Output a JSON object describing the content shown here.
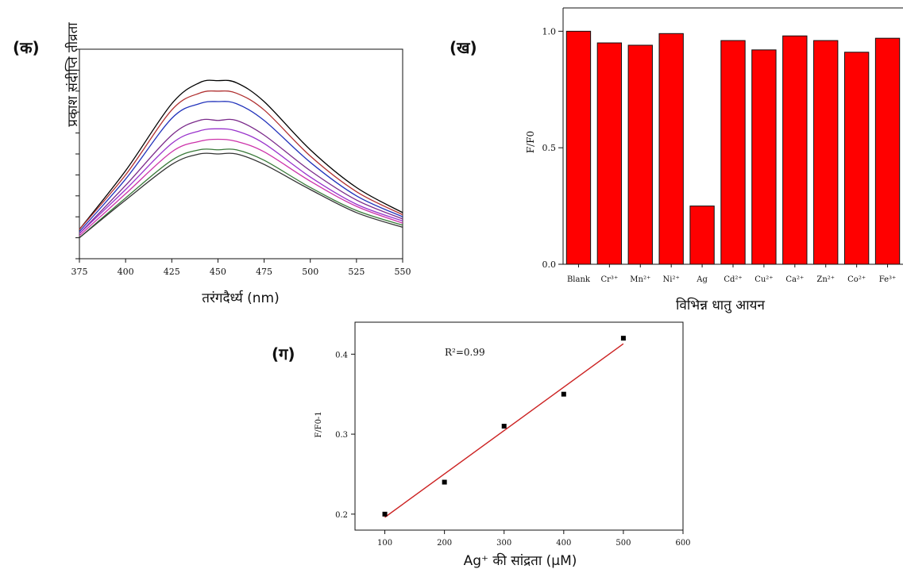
{
  "chart_data": [
    {
      "type": "line",
      "panel_label": "(क)",
      "xlabel": "तरंगदैर्ध्य (nm)",
      "ylabel": "प्रकाश संदीप्ति तीव्रता",
      "xlim": [
        375,
        550
      ],
      "ylim": [
        0,
        1
      ],
      "x_ticks": [
        "375",
        "400",
        "425",
        "450",
        "475",
        "500",
        "525",
        "550"
      ],
      "y_ticks_labeled": false,
      "grid": false,
      "x": [
        375,
        400,
        425,
        440,
        450,
        460,
        475,
        500,
        525,
        550
      ],
      "series": [
        {
          "color": "#000000",
          "values": [
            0.14,
            0.42,
            0.74,
            0.84,
            0.85,
            0.84,
            0.75,
            0.52,
            0.34,
            0.22
          ]
        },
        {
          "color": "#b03030",
          "values": [
            0.14,
            0.4,
            0.71,
            0.79,
            0.8,
            0.79,
            0.71,
            0.49,
            0.32,
            0.21
          ]
        },
        {
          "color": "#2233bb",
          "values": [
            0.13,
            0.38,
            0.67,
            0.74,
            0.75,
            0.74,
            0.66,
            0.46,
            0.3,
            0.2
          ]
        },
        {
          "color": "#7a2a8a",
          "values": [
            0.12,
            0.35,
            0.59,
            0.66,
            0.66,
            0.66,
            0.59,
            0.42,
            0.28,
            0.19
          ]
        },
        {
          "color": "#9933cc",
          "values": [
            0.12,
            0.33,
            0.55,
            0.61,
            0.62,
            0.61,
            0.55,
            0.39,
            0.26,
            0.18
          ]
        },
        {
          "color": "#cc33aa",
          "values": [
            0.11,
            0.31,
            0.51,
            0.56,
            0.57,
            0.56,
            0.51,
            0.37,
            0.25,
            0.17
          ]
        },
        {
          "color": "#3a7a3a",
          "values": [
            0.1,
            0.29,
            0.47,
            0.52,
            0.52,
            0.52,
            0.47,
            0.34,
            0.23,
            0.16
          ]
        },
        {
          "color": "#333333",
          "values": [
            0.1,
            0.28,
            0.45,
            0.5,
            0.5,
            0.5,
            0.45,
            0.33,
            0.22,
            0.15
          ]
        }
      ]
    },
    {
      "type": "bar",
      "panel_label": "(ख)",
      "xlabel": "विभिन्न धातु आयन",
      "ylabel": "F/F0",
      "ylim": [
        0,
        1.1
      ],
      "y_ticks": [
        {
          "value": 0,
          "label": "0.0"
        },
        {
          "value": 0.5,
          "label": "0.5"
        },
        {
          "value": 1.0,
          "label": "1.0"
        }
      ],
      "bar_color": "#ff0000",
      "categories": [
        "Blank",
        "Cr³⁺",
        "Mn²⁺",
        "Ni²⁺",
        "Ag",
        "Cd²⁺",
        "Cu²⁺",
        "Ca²⁺",
        "Zn²⁺",
        "Co²⁺",
        "Fe³⁺"
      ],
      "values": [
        1.0,
        0.95,
        0.94,
        0.99,
        0.25,
        0.96,
        0.92,
        0.98,
        0.96,
        0.91,
        0.97
      ]
    },
    {
      "type": "scatter",
      "panel_label": "(ग)",
      "xlabel": "Ag⁺ की सांद्रता (µM)",
      "ylabel": "F/F0-1",
      "annotation": "R²=0.99",
      "xlim": [
        50,
        600
      ],
      "ylim": [
        0.18,
        0.44
      ],
      "x_ticks": [
        100,
        200,
        300,
        400,
        500,
        600
      ],
      "y_ticks": [
        {
          "value": 0.2,
          "label": "0.2"
        },
        {
          "value": 0.3,
          "label": "0.3"
        },
        {
          "value": 0.4,
          "label": "0.4"
        }
      ],
      "x": [
        100,
        200,
        300,
        400,
        500
      ],
      "y": [
        0.2,
        0.24,
        0.31,
        0.35,
        0.42
      ],
      "fit": {
        "color": "#cc2222",
        "x": [
          100,
          500
        ],
        "y": [
          0.196,
          0.413
        ]
      },
      "marker_color": "#000000"
    }
  ]
}
